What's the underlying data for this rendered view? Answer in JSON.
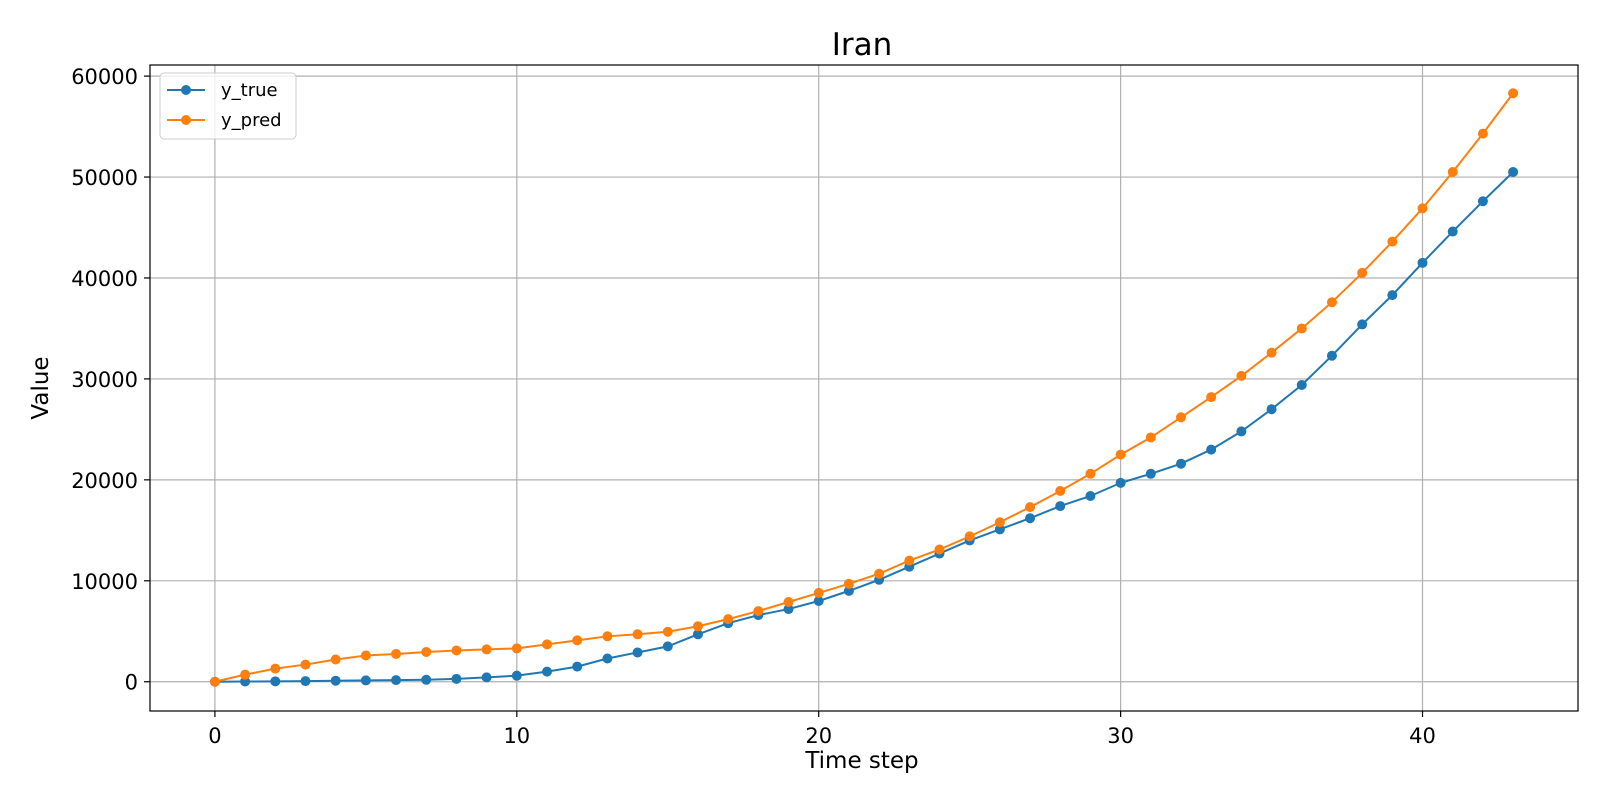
{
  "chart_data": {
    "type": "line",
    "title": "Iran",
    "xlabel": "Time step",
    "ylabel": "Value",
    "xlim": [
      -2.15,
      45.15
    ],
    "ylim": [
      -2900,
      61100
    ],
    "xticks": [
      0,
      10,
      20,
      30,
      40
    ],
    "yticks": [
      0,
      10000,
      20000,
      30000,
      40000,
      50000,
      60000
    ],
    "grid": true,
    "legend_position": "top-left",
    "x": [
      0,
      1,
      2,
      3,
      4,
      5,
      6,
      7,
      8,
      9,
      10,
      11,
      12,
      13,
      14,
      15,
      16,
      17,
      18,
      19,
      20,
      21,
      22,
      23,
      24,
      25,
      26,
      27,
      28,
      29,
      30,
      31,
      32,
      33,
      34,
      35,
      36,
      37,
      38,
      39,
      40,
      41,
      42,
      43
    ],
    "series": [
      {
        "name": "y_true",
        "color": "#1f77b4",
        "values": [
          0,
          20,
          40,
          60,
          100,
          130,
          160,
          190,
          280,
          430,
          600,
          1000,
          1500,
          2300,
          2900,
          3500,
          4700,
          5800,
          6600,
          7200,
          8000,
          9000,
          10100,
          11400,
          12700,
          14000,
          15100,
          16200,
          17400,
          18400,
          19700,
          20600,
          21600,
          23000,
          24800,
          27000,
          29400,
          32300,
          35400,
          38300,
          41500,
          44600,
          47600,
          50500
        ]
      },
      {
        "name": "y_pred",
        "color": "#ff7f0e",
        "values": [
          0,
          700,
          1300,
          1700,
          2200,
          2600,
          2750,
          2950,
          3100,
          3200,
          3300,
          3700,
          4100,
          4500,
          4700,
          4950,
          5500,
          6200,
          7000,
          7900,
          8800,
          9700,
          10700,
          12000,
          13100,
          14400,
          15800,
          17300,
          18900,
          20600,
          22500,
          24200,
          26200,
          28200,
          30300,
          32600,
          35000,
          37600,
          40500,
          43600,
          46900,
          50500,
          54300,
          58300
        ]
      }
    ]
  }
}
